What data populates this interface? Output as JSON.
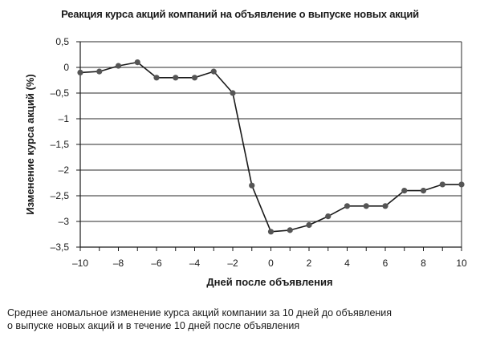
{
  "chart_data": {
    "type": "line",
    "title": "Реакция курса акций компаний на объявление о выпуске новых акций",
    "xlabel": "Дней после объявления",
    "ylabel": "Изменение курса акций (%)",
    "xlim": [
      -10,
      10
    ],
    "ylim": [
      -3.5,
      0.5
    ],
    "grid": "horizontal",
    "x_ticks": [
      -10,
      -8,
      -6,
      -4,
      -2,
      0,
      2,
      4,
      6,
      8,
      10
    ],
    "x_tick_labels": [
      "–10",
      "–8",
      "–6",
      "–4",
      "–2",
      "0",
      "2",
      "4",
      "6",
      "8",
      "10"
    ],
    "y_ticks": [
      0.5,
      0,
      -0.5,
      -1,
      -1.5,
      -2,
      -2.5,
      -3,
      -3.5
    ],
    "y_tick_labels": [
      "0,5",
      "0",
      "–0,5",
      "–1",
      "–1,5",
      "–2",
      "–2,5",
      "–3",
      "–3,5"
    ],
    "series": [
      {
        "color": "#1a1a1a",
        "marker_color": "#555555",
        "x": [
          -10,
          -9,
          -8,
          -7,
          -6,
          -5,
          -4,
          -3,
          -2,
          -1,
          0,
          1,
          2,
          3,
          4,
          5,
          6,
          7,
          8,
          9,
          10
        ],
        "y": [
          -0.1,
          -0.08,
          0.03,
          0.1,
          -0.2,
          -0.2,
          -0.2,
          -0.08,
          -0.5,
          -2.3,
          -3.2,
          -3.17,
          -3.07,
          -2.9,
          -2.7,
          -2.7,
          -2.7,
          -2.4,
          -2.4,
          -2.28,
          -2.28
        ]
      }
    ]
  },
  "caption": {
    "line1": "Среднее аномальное изменение курса акций компании за 10 дней до объявления",
    "line2": "о выпуске новых акций и в течение 10 дней после объявления"
  }
}
